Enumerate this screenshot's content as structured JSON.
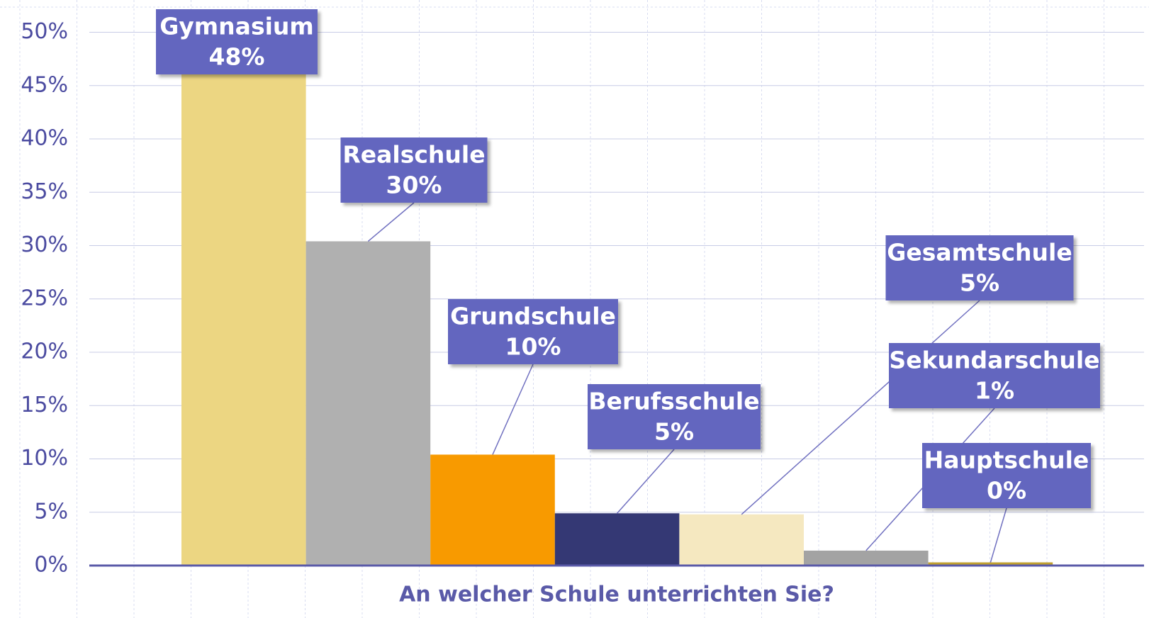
{
  "chart_data": {
    "type": "bar",
    "x_label": "An welcher Schule unterrichten Sie?",
    "categories": [
      "Gymnasium",
      "Realschule",
      "Grundschule",
      "Berufsschule",
      "Gesamtschule",
      "Sekundarschule",
      "Hauptschule"
    ],
    "values": [
      48,
      30.4,
      10.4,
      4.9,
      4.8,
      1.4,
      0.3
    ],
    "value_labels": [
      "48%",
      "30%",
      "10%",
      "5%",
      "5%",
      "1%",
      "0%"
    ],
    "colors": [
      "#ecd682",
      "#b0b0b0",
      "#f89a00",
      "#343874",
      "#f5e8c0",
      "#a3a3a3",
      "#c0a030"
    ],
    "ylim": [
      0,
      50
    ],
    "yticks": [
      {
        "value": 0,
        "label": "0%"
      },
      {
        "value": 5,
        "label": "5%"
      },
      {
        "value": 10,
        "label": "10%"
      },
      {
        "value": 15,
        "label": "15%"
      },
      {
        "value": 20,
        "label": "20%"
      },
      {
        "value": 25,
        "label": "25%"
      },
      {
        "value": 30,
        "label": "30%"
      },
      {
        "value": 35,
        "label": "35%"
      },
      {
        "value": 40,
        "label": "40%"
      },
      {
        "value": 45,
        "label": "45%"
      },
      {
        "value": 50,
        "label": "50%"
      }
    ],
    "grid": true
  }
}
